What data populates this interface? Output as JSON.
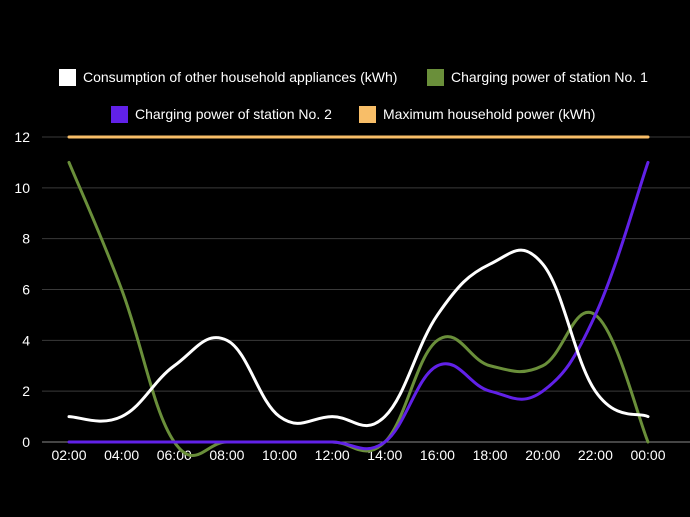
{
  "chart_data": {
    "type": "line",
    "title": "",
    "xlabel": "",
    "ylabel": "",
    "categories": [
      "02:00",
      "04:00",
      "06:00",
      "08:00",
      "10:00",
      "12:00",
      "14:00",
      "16:00",
      "18:00",
      "20:00",
      "22:00",
      "00:00"
    ],
    "ylim": [
      0,
      12
    ],
    "yticks": [
      0,
      2,
      4,
      6,
      8,
      10,
      12
    ],
    "grid": true,
    "legend_position": "top",
    "background": "#000000",
    "series": [
      {
        "name": "Consumption of other household appliances (kWh)",
        "color": "#ffffff",
        "values": [
          1,
          1,
          3,
          4,
          1,
          1,
          1,
          5,
          7,
          7,
          2,
          1
        ]
      },
      {
        "name": "Charging power of station No. 1",
        "color": "#6a8f3a",
        "values": [
          11,
          6,
          0,
          0,
          0,
          0,
          0,
          4,
          3,
          3,
          5,
          0
        ]
      },
      {
        "name": "Charging power of station No. 2",
        "color": "#6121e8",
        "values": [
          0,
          0,
          0,
          0,
          0,
          0,
          0,
          3,
          2,
          2,
          5,
          11
        ]
      },
      {
        "name": "Maximum household power (kWh)",
        "color": "#f8be68",
        "values": [
          12,
          12,
          12,
          12,
          12,
          12,
          12,
          12,
          12,
          12,
          12,
          12
        ]
      }
    ]
  }
}
